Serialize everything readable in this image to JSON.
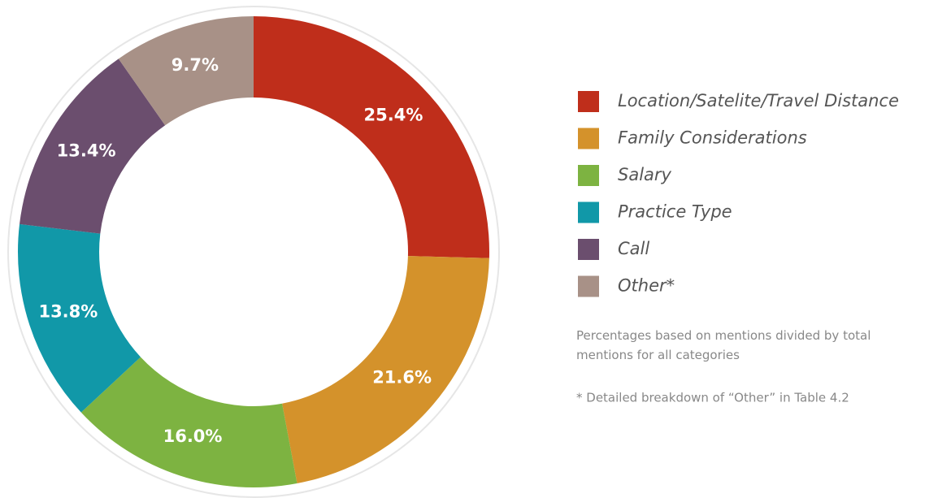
{
  "chart_data": {
    "type": "donut",
    "categories": [
      "Location/Satelite/Travel Distance",
      "Family Considerations",
      "Salary",
      "Practice Type",
      "Call",
      "Other*"
    ],
    "values": [
      25.4,
      21.6,
      16.0,
      13.8,
      13.4,
      9.7
    ],
    "value_labels": [
      "25.4%",
      "21.6%",
      "16.0%",
      "13.8%",
      "13.4%",
      "9.7%"
    ],
    "colors": [
      "#bf2e1b",
      "#d4922b",
      "#7db341",
      "#1198a8",
      "#6b4e6e",
      "#a89187"
    ],
    "note": "Percentages based on mentions divided by total mentions for all categories",
    "footnote": "* Detailed breakdown of “Other” in Table 4.2"
  }
}
